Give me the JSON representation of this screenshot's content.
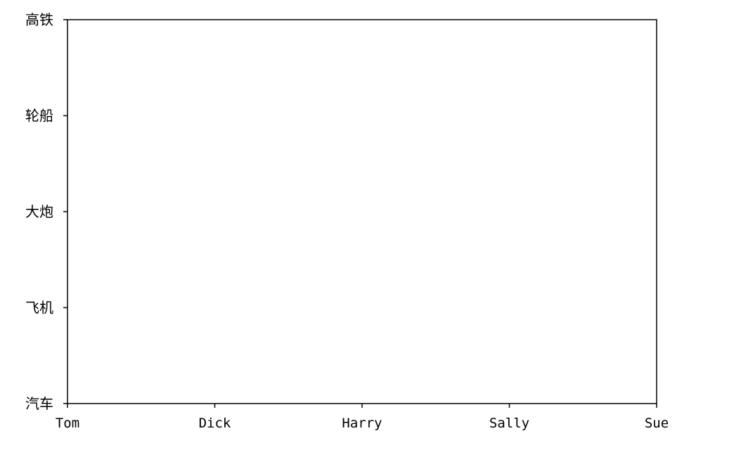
{
  "chart_data": {
    "type": "line",
    "title": "",
    "xlabel": "",
    "ylabel": "",
    "categories": [
      "Tom",
      "Dick",
      "Harry",
      "Sally",
      "Sue"
    ],
    "y_categories": [
      "汽车",
      "飞机",
      "大炮",
      "轮船",
      "高铁"
    ],
    "series": [],
    "grid": false,
    "legend": "none"
  },
  "colors": {
    "axis": "#000000",
    "background": "#ffffff"
  }
}
